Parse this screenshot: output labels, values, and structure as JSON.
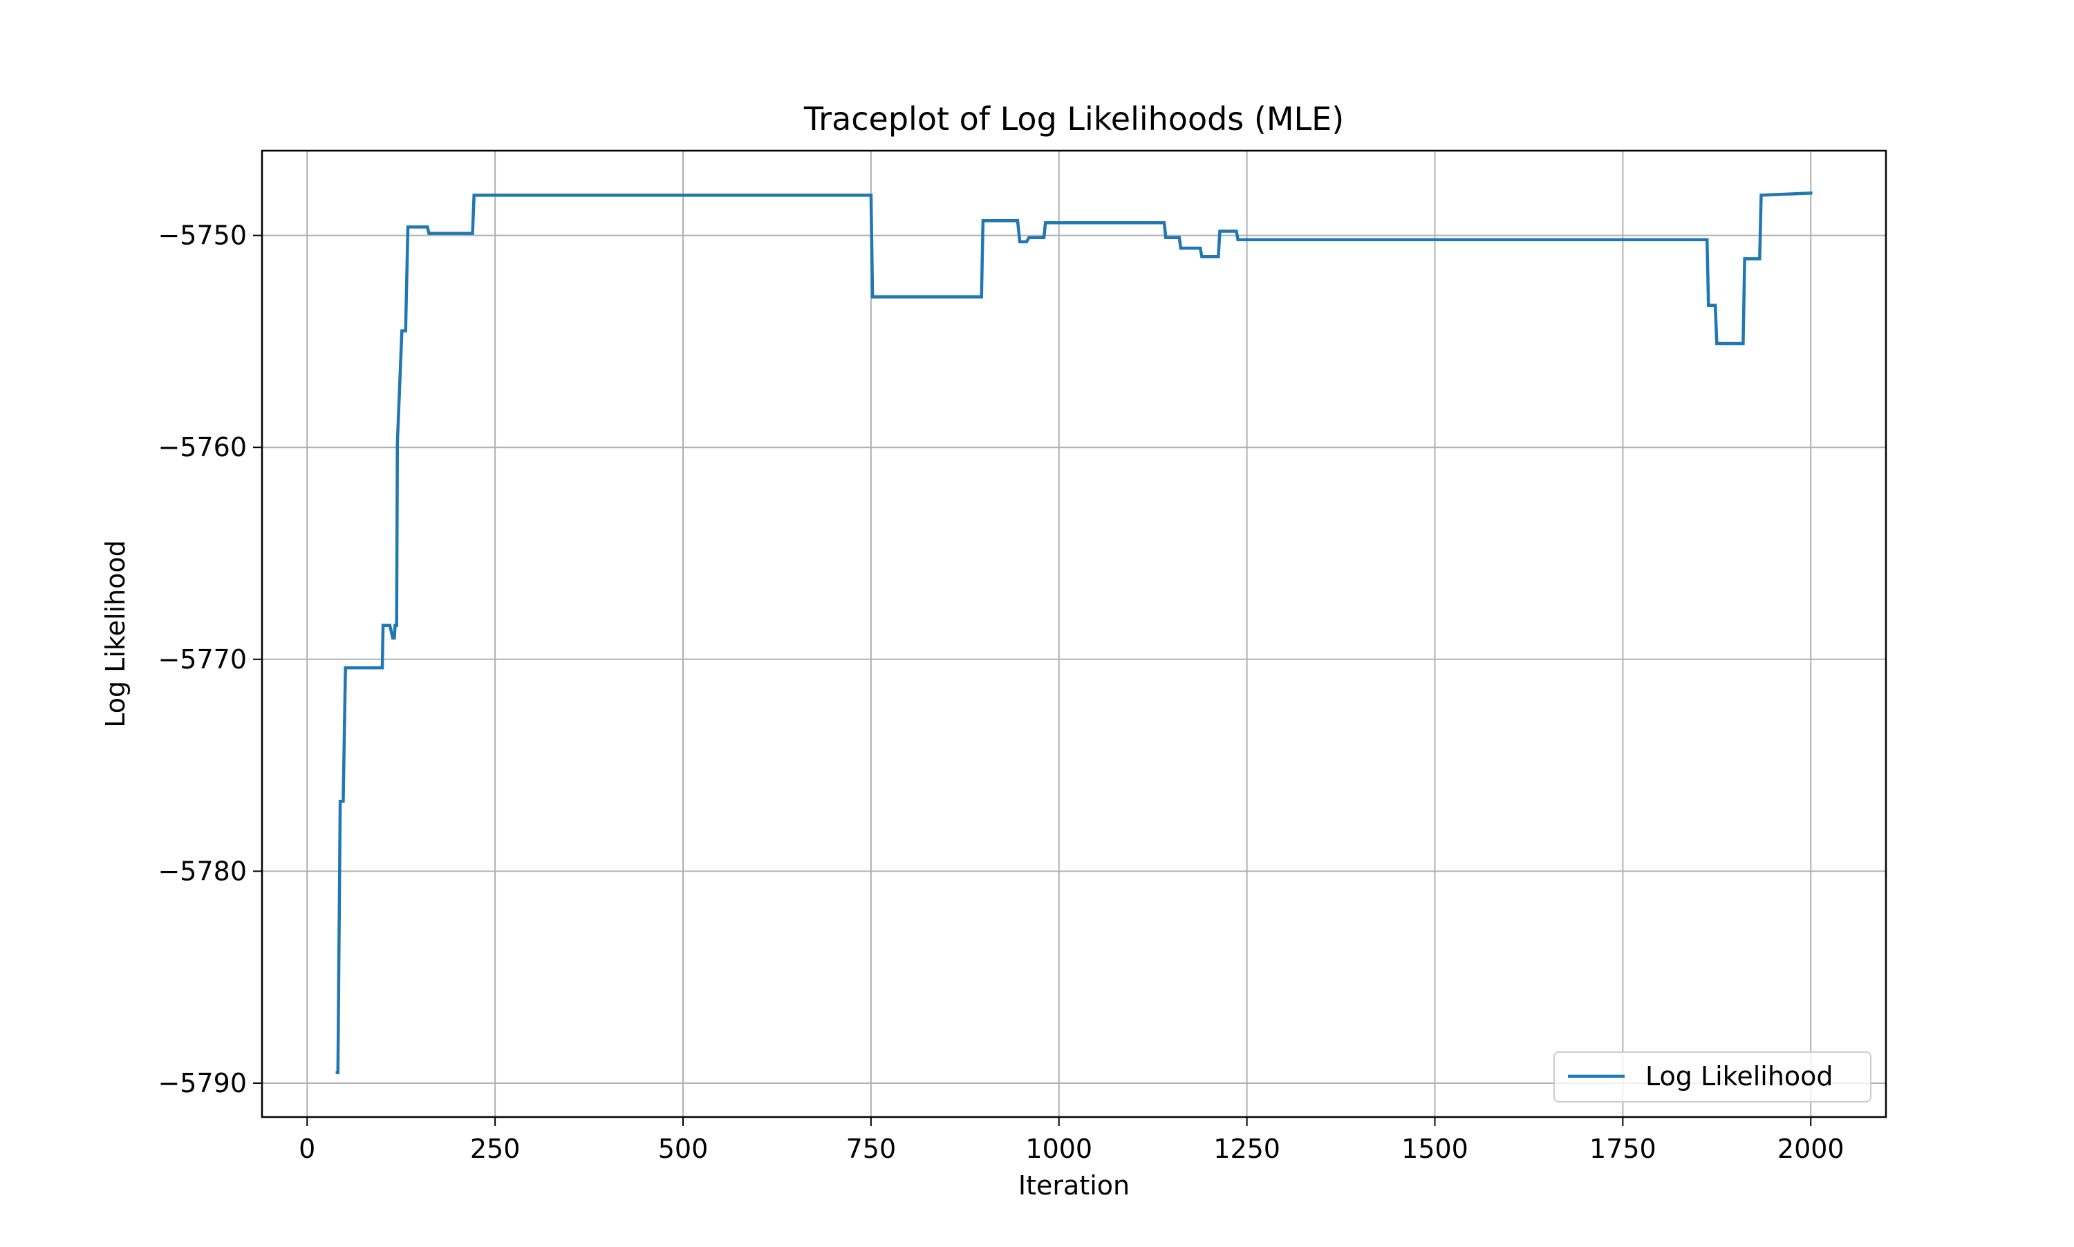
{
  "chart_data": {
    "type": "line",
    "title": "Traceplot of Log Likelihoods (MLE)",
    "xlabel": "Iteration",
    "ylabel": "Log Likelihood",
    "xlim": [
      -60,
      2100
    ],
    "ylim": [
      -5791.6,
      -5746.0
    ],
    "xticks": [
      0,
      250,
      500,
      750,
      1000,
      1250,
      1500,
      1750,
      2000
    ],
    "xtick_labels": [
      "0",
      "250",
      "500",
      "750",
      "1000",
      "1250",
      "1500",
      "1750",
      "2000"
    ],
    "yticks": [
      -5750,
      -5760,
      -5770,
      -5780,
      -5790
    ],
    "ytick_labels": [
      "−5750",
      "−5760",
      "−5770",
      "−5780",
      "−5790"
    ],
    "grid": true,
    "legend": {
      "location": "lower-right",
      "entries": [
        "Log Likelihood"
      ]
    },
    "colors": {
      "series": "#1f77b4",
      "grid": "#b0b0b0",
      "axes": "#000000",
      "legend_border": "#cccccc"
    },
    "series": [
      {
        "name": "Log Likelihood",
        "x": [
          40,
          41,
          44,
          48,
          51,
          100,
          101,
          110,
          114,
          116,
          117,
          119,
          120,
          126,
          131,
          134,
          160,
          162,
          220,
          222,
          750,
          752,
          897,
          899,
          945,
          948,
          957,
          960,
          980,
          982,
          1140,
          1142,
          1160,
          1162,
          1188,
          1190,
          1212,
          1214,
          1236,
          1238,
          1862,
          1864,
          1873,
          1875,
          1910,
          1912,
          1932,
          1934,
          2000
        ],
        "y": [
          -5789.5,
          -5789.5,
          -5776.7,
          -5776.7,
          -5770.4,
          -5770.4,
          -5768.4,
          -5768.4,
          -5769.0,
          -5769.0,
          -5768.4,
          -5768.4,
          -5759.8,
          -5754.5,
          -5754.5,
          -5749.6,
          -5749.6,
          -5749.9,
          -5749.9,
          -5748.1,
          -5748.1,
          -5752.9,
          -5752.9,
          -5749.3,
          -5749.3,
          -5750.3,
          -5750.3,
          -5750.1,
          -5750.1,
          -5749.4,
          -5749.4,
          -5750.1,
          -5750.1,
          -5750.6,
          -5750.6,
          -5751.0,
          -5751.0,
          -5749.8,
          -5749.8,
          -5750.2,
          -5750.2,
          -5753.3,
          -5753.3,
          -5755.1,
          -5755.1,
          -5751.1,
          -5751.1,
          -5748.1,
          -5748.0
        ]
      }
    ]
  }
}
